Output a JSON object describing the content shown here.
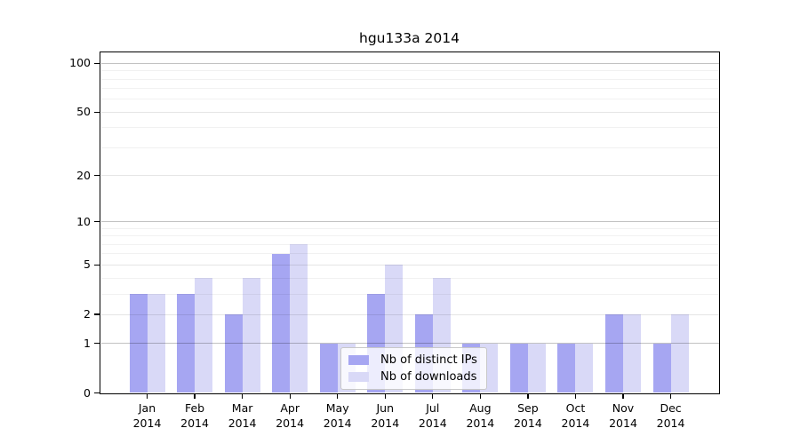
{
  "chart_data": {
    "type": "bar",
    "title": "hgu133a 2014",
    "x_tick_months": [
      "Jan",
      "Feb",
      "Mar",
      "Apr",
      "May",
      "Jun",
      "Jul",
      "Aug",
      "Sep",
      "Oct",
      "Nov",
      "Dec"
    ],
    "x_tick_year": "2014",
    "series": [
      {
        "name": "Nb of distinct IPs",
        "color": "#a6a6f2",
        "values": [
          3,
          3,
          2,
          6,
          1,
          3,
          2,
          1,
          1,
          1,
          2,
          1
        ]
      },
      {
        "name": "Nb of downloads",
        "color": "#d9d9f7",
        "values": [
          3,
          4,
          4,
          7,
          1,
          5,
          4,
          1,
          1,
          1,
          2,
          2
        ]
      }
    ],
    "y_axis": {
      "scale": "log1p",
      "tick_labels": [
        100,
        50,
        20,
        10,
        5,
        2,
        1,
        0
      ],
      "ylim": [
        0,
        116
      ],
      "major_gridlines": [
        1,
        10,
        100
      ],
      "mid_gridlines": [
        2,
        5,
        20,
        50
      ],
      "minor_gridlines": [
        3,
        4,
        6,
        7,
        8,
        9,
        30,
        40,
        60,
        70,
        80,
        90
      ]
    },
    "grid": true,
    "legend": {
      "position": "lower center",
      "entries": [
        "Nb of distinct IPs",
        "Nb of downloads"
      ]
    }
  }
}
